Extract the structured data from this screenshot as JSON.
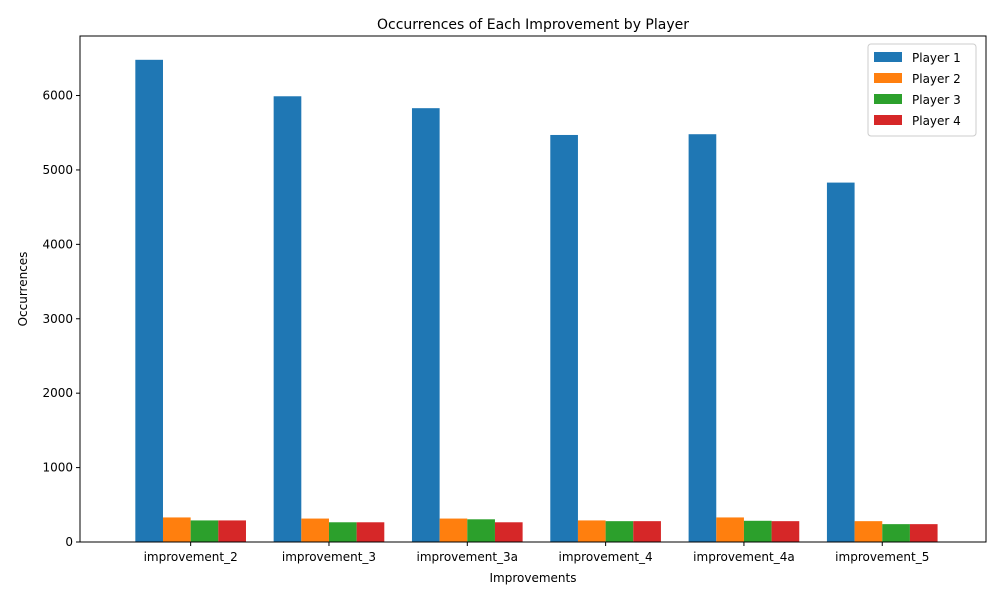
{
  "chart_data": {
    "type": "bar",
    "title": "Occurrences of Each Improvement by Player",
    "xlabel": "Improvements",
    "ylabel": "Occurrences",
    "categories": [
      "improvement_2",
      "improvement_3",
      "improvement_3a",
      "improvement_4",
      "improvement_4a",
      "improvement_5"
    ],
    "series": [
      {
        "name": "Player 1",
        "color": "#1f77b4",
        "values": [
          6480,
          5990,
          5830,
          5470,
          5480,
          4830
        ]
      },
      {
        "name": "Player 2",
        "color": "#ff7f0e",
        "values": [
          330,
          315,
          315,
          290,
          330,
          280
        ]
      },
      {
        "name": "Player 3",
        "color": "#2ca02c",
        "values": [
          290,
          265,
          305,
          280,
          285,
          240
        ]
      },
      {
        "name": "Player 4",
        "color": "#d62728",
        "values": [
          290,
          265,
          265,
          280,
          280,
          240
        ]
      }
    ],
    "ylim": [
      0,
      6800
    ],
    "yticks": [
      0,
      1000,
      2000,
      3000,
      4000,
      5000,
      6000
    ],
    "grid": false,
    "legend_position": "top-right"
  }
}
